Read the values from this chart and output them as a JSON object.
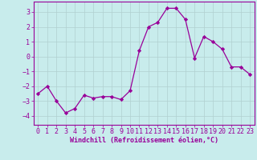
{
  "x": [
    0,
    1,
    2,
    3,
    4,
    5,
    6,
    7,
    8,
    9,
    10,
    11,
    12,
    13,
    14,
    15,
    16,
    17,
    18,
    19,
    20,
    21,
    22,
    23
  ],
  "y": [
    -2.5,
    -2.0,
    -3.0,
    -3.8,
    -3.5,
    -2.6,
    -2.8,
    -2.7,
    -2.7,
    -2.9,
    -2.3,
    0.4,
    2.0,
    2.3,
    3.25,
    3.25,
    2.5,
    -0.1,
    1.35,
    1.0,
    0.5,
    -0.7,
    -0.7,
    -1.2
  ],
  "line_color": "#990099",
  "marker": "D",
  "marker_size": 2.2,
  "line_width": 0.9,
  "xlabel": "Windchill (Refroidissement éolien,°C)",
  "xlabel_fontsize": 6.0,
  "bg_color": "#c8ecec",
  "grid_color": "#b0d0d0",
  "tick_fontsize": 6.0,
  "ylim": [
    -4.6,
    3.7
  ],
  "xlim": [
    -0.5,
    23.5
  ],
  "yticks": [
    -4,
    -3,
    -2,
    -1,
    0,
    1,
    2,
    3
  ],
  "xticks": [
    0,
    1,
    2,
    3,
    4,
    5,
    6,
    7,
    8,
    9,
    10,
    11,
    12,
    13,
    14,
    15,
    16,
    17,
    18,
    19,
    20,
    21,
    22,
    23
  ]
}
